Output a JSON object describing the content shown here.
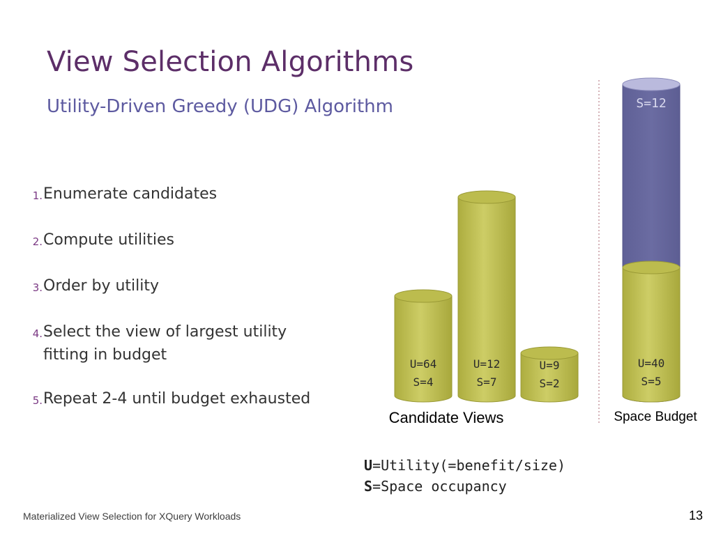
{
  "slide": {
    "title": "View Selection Algorithms",
    "subtitle": "Utility-Driven Greedy (UDG) Algorithm",
    "steps": [
      {
        "num": "1.",
        "text": "Enumerate candidates"
      },
      {
        "num": "2.",
        "text": "Compute utilities"
      },
      {
        "num": "3.",
        "text": "Order by utility"
      },
      {
        "num": "4.",
        "text": "Select the view of largest utility fitting in budget"
      },
      {
        "num": "5.",
        "text": "Repeat 2-4 until budget exhausted"
      }
    ],
    "footer": "Materialized View Selection for XQuery Workloads",
    "page_number": "13"
  },
  "diagram": {
    "candidate_views": [
      {
        "u": "U=64",
        "s": "S=4"
      },
      {
        "u": "U=12",
        "s": "S=7"
      },
      {
        "u": "U=9",
        "s": "S=2"
      }
    ],
    "candidate_views_label": "Candidate Views",
    "budget_label": "S=12",
    "selected_view": {
      "u": "U=40",
      "s": "S=5"
    },
    "space_budget_label": "Space Budget",
    "colors": {
      "candidate_fill": "#c2c257",
      "candidate_top": "#b9b94a",
      "budget_fill": "#65669c",
      "budget_top": "#b9b9dc"
    }
  },
  "legend": {
    "u_key": "U",
    "u_text": "=Utility(=benefit/size)",
    "s_key": "S",
    "s_text": "=Space occupancy"
  }
}
